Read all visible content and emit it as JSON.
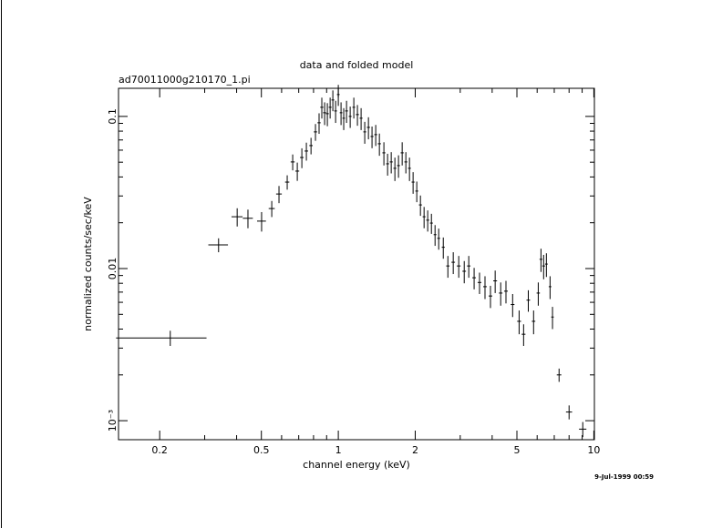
{
  "chart_data": {
    "type": "scatter",
    "title": "data and folded model",
    "subtitle": "ad70011000g210170_1.pi",
    "xlabel": "channel energy (keV)",
    "ylabel": "normalized counts/sec/keV",
    "timestamp": "9-Jul-1999 00:59",
    "xscale": "log",
    "yscale": "log",
    "color": "#000000",
    "xlim": [
      0.138,
      10.05
    ],
    "ylim": [
      0.00075,
      0.153
    ],
    "xticks": [
      0.2,
      0.5,
      1,
      2,
      5,
      10
    ],
    "xminorticks": [
      0.3,
      0.4,
      0.6,
      0.7,
      0.8,
      0.9,
      3,
      4,
      6,
      7,
      8,
      9
    ],
    "yticks": [
      {
        "value": 0.001,
        "label": "10⁻³"
      },
      0.01,
      0.1
    ],
    "yminorticks": [
      0.002,
      0.003,
      0.004,
      0.005,
      0.006,
      0.007,
      0.008,
      0.009,
      0.02,
      0.03,
      0.04,
      0.05,
      0.06,
      0.07,
      0.08,
      0.09
    ],
    "series": [
      {
        "name": "data",
        "x": [
          0.22,
          0.34,
          0.402,
          0.443,
          0.501,
          0.549,
          0.586,
          0.631,
          0.663,
          0.691,
          0.72,
          0.75,
          0.782,
          0.814,
          0.841,
          0.862,
          0.884,
          0.906,
          0.929,
          0.952,
          0.976,
          1.0,
          1.025,
          1.05,
          1.077,
          1.113,
          1.15,
          1.188,
          1.228,
          1.269,
          1.312,
          1.355,
          1.401,
          1.448,
          1.508,
          1.559,
          1.611,
          1.665,
          1.72,
          1.778,
          1.838,
          1.899,
          1.962,
          2.028,
          2.096,
          2.166,
          2.238,
          2.314,
          2.391,
          2.471,
          2.575,
          2.684,
          2.817,
          2.96,
          3.11,
          3.24,
          3.4,
          3.57,
          3.75,
          3.94,
          4.11,
          4.32,
          4.53,
          4.81,
          5.1,
          5.31,
          5.54,
          5.81,
          6.06,
          6.21,
          6.36,
          6.52,
          6.74,
          6.89,
          7.31,
          8.0,
          9.05
        ],
        "xerr": [
          0.085,
          0.03,
          0.02,
          0.02,
          0.02,
          0.015,
          0.015,
          0.012,
          0.012,
          0.012,
          0.012,
          0.012,
          0.012,
          0.012,
          0.012,
          0.012,
          0.012,
          0.012,
          0.012,
          0.012,
          0.012,
          0.012,
          0.012,
          0.012,
          0.014,
          0.014,
          0.014,
          0.016,
          0.016,
          0.016,
          0.018,
          0.018,
          0.018,
          0.02,
          0.02,
          0.02,
          0.022,
          0.022,
          0.022,
          0.024,
          0.024,
          0.024,
          0.026,
          0.026,
          0.028,
          0.028,
          0.03,
          0.03,
          0.03,
          0.032,
          0.035,
          0.04,
          0.045,
          0.05,
          0.05,
          0.05,
          0.055,
          0.06,
          0.06,
          0.065,
          0.07,
          0.07,
          0.075,
          0.08,
          0.09,
          0.09,
          0.09,
          0.09,
          0.09,
          0.08,
          0.08,
          0.08,
          0.08,
          0.08,
          0.15,
          0.22,
          0.3
        ],
        "y": [
          0.0035,
          0.0143,
          0.0219,
          0.0214,
          0.0205,
          0.0248,
          0.0309,
          0.037,
          0.0502,
          0.0437,
          0.0537,
          0.0592,
          0.0643,
          0.0791,
          0.0908,
          0.1148,
          0.1057,
          0.1042,
          0.1148,
          0.1282,
          0.1086,
          0.1392,
          0.1057,
          0.0973,
          0.1086,
          0.1,
          0.1148,
          0.1028,
          0.0973,
          0.0791,
          0.0847,
          0.0738,
          0.0759,
          0.0661,
          0.0576,
          0.0488,
          0.0502,
          0.0456,
          0.0475,
          0.0576,
          0.0502,
          0.0456,
          0.037,
          0.0323,
          0.0262,
          0.0219,
          0.0208,
          0.0199,
          0.0167,
          0.0158,
          0.0138,
          0.0104,
          0.011,
          0.0104,
          0.0096,
          0.0104,
          0.0087,
          0.0081,
          0.0076,
          0.0066,
          0.0083,
          0.0069,
          0.0071,
          0.0058,
          0.0045,
          0.0037,
          0.0062,
          0.0045,
          0.0069,
          0.0115,
          0.0104,
          0.0107,
          0.0076,
          0.0048,
          0.002,
          0.00114,
          0.00088
        ],
        "yerr": [
          0.0004,
          0.0015,
          0.003,
          0.003,
          0.003,
          0.003,
          0.004,
          0.004,
          0.006,
          0.006,
          0.008,
          0.008,
          0.008,
          0.01,
          0.014,
          0.018,
          0.018,
          0.018,
          0.018,
          0.02,
          0.018,
          0.022,
          0.018,
          0.016,
          0.018,
          0.016,
          0.018,
          0.016,
          0.016,
          0.013,
          0.014,
          0.012,
          0.012,
          0.011,
          0.01,
          0.008,
          0.008,
          0.008,
          0.008,
          0.01,
          0.008,
          0.008,
          0.006,
          0.005,
          0.004,
          0.0035,
          0.0033,
          0.003,
          0.0026,
          0.0025,
          0.0022,
          0.0017,
          0.0018,
          0.0017,
          0.0016,
          0.0017,
          0.0014,
          0.0013,
          0.0013,
          0.0011,
          0.0014,
          0.0012,
          0.0012,
          0.001,
          0.0008,
          0.0006,
          0.001,
          0.0008,
          0.0012,
          0.002,
          0.0019,
          0.0019,
          0.0013,
          0.0008,
          0.0002,
          0.00012,
          0.0001
        ]
      }
    ]
  }
}
